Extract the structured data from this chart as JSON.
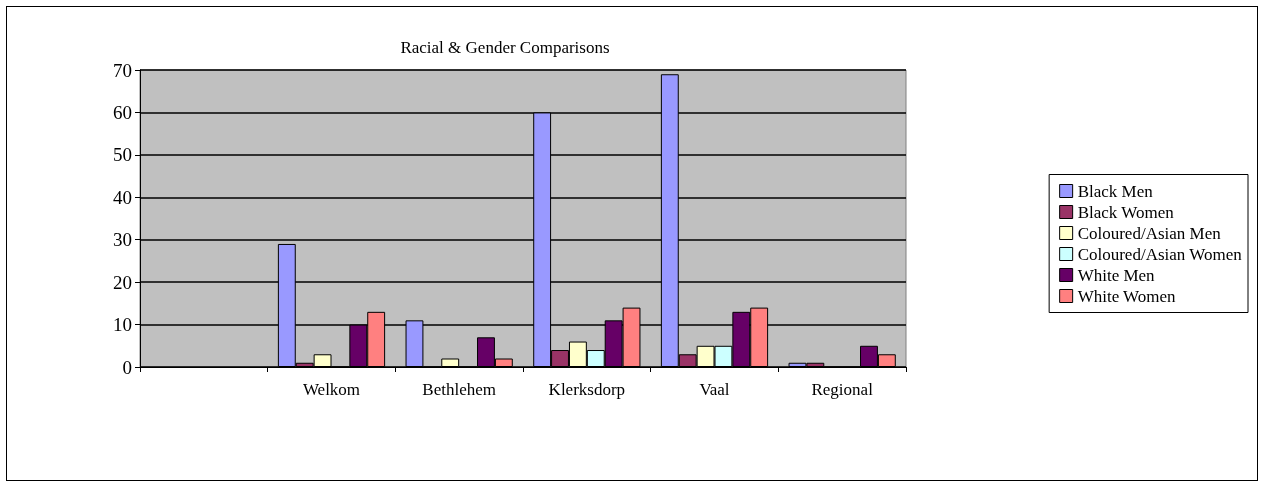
{
  "chart_data": {
    "type": "bar",
    "title": "Racial & Gender Comparisons",
    "categories": [
      null,
      "Welkom",
      "Bethlehem",
      "Klerksdorp",
      "Vaal",
      "Regional"
    ],
    "series": [
      {
        "name": "Black Men",
        "color": "#9999ff",
        "values": [
          null,
          29,
          11,
          60,
          69,
          1
        ]
      },
      {
        "name": "Black Women",
        "color": "#993366",
        "values": [
          null,
          1,
          0,
          4,
          3,
          1
        ]
      },
      {
        "name": "Coloured/Asian Men",
        "color": "#ffffcc",
        "values": [
          null,
          3,
          2,
          6,
          5,
          0
        ]
      },
      {
        "name": "Coloured/Asian Women",
        "color": "#ccffff",
        "values": [
          null,
          0,
          0,
          4,
          5,
          0
        ]
      },
      {
        "name": "White Men",
        "color": "#660066",
        "values": [
          null,
          10,
          7,
          11,
          13,
          5
        ]
      },
      {
        "name": "White Women",
        "color": "#ff8080",
        "values": [
          null,
          13,
          2,
          14,
          14,
          3
        ]
      }
    ],
    "ylim": [
      0,
      70
    ],
    "yticks": [
      0,
      10,
      20,
      30,
      40,
      50,
      60,
      70
    ],
    "grid": "y",
    "legend": "right"
  }
}
